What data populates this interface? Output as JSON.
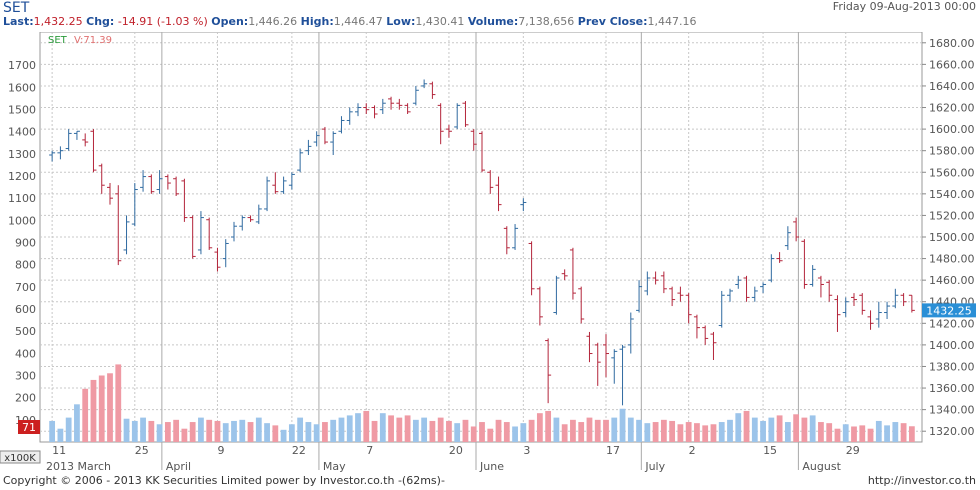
{
  "header": {
    "symbol": "SET",
    "date": "Friday 09-Aug-2013 00:00",
    "last_label": "Last:",
    "last_value": "1,432.25",
    "chg_label": "Chg:",
    "chg_value": "-14.91 (-1.03 %)",
    "open_label": "Open:",
    "open_value": "1,446.26",
    "high_label": "High:",
    "high_value": "1,446.47",
    "low_label": "Low:",
    "low_value": "1,430.41",
    "volume_label": "Volume:",
    "volume_value": "7,138,656",
    "prevclose_label": "Prev Close:",
    "prevclose_value": "1,447.16"
  },
  "footer": {
    "copyright": "Copyright © 2006 - 2013 KK Securities Limited power by Investor.co.th  -(62ms)-",
    "url": "http://investor.co.th"
  },
  "chart_data": {
    "type": "ohlc",
    "legend": {
      "symbol": "SET",
      "volume": "V:71.39"
    },
    "price_axis": {
      "min": 1310,
      "max": 1690,
      "ticks": [
        1320,
        1340,
        1360,
        1380,
        1400,
        1420,
        1440,
        1460,
        1480,
        1500,
        1520,
        1540,
        1560,
        1580,
        1600,
        1620,
        1640,
        1660,
        1680
      ]
    },
    "left_axis": {
      "ticks": [
        100,
        200,
        300,
        400,
        500,
        600,
        700,
        800,
        900,
        1000,
        1100,
        1200,
        1300,
        1400,
        1500,
        1600,
        1700
      ]
    },
    "volume_unit": "x100K",
    "current_price": "1432.25",
    "current_volume": "71",
    "x_labels": [
      "11",
      "25",
      "9",
      "22",
      "7",
      "20",
      "3",
      "17",
      "2",
      "15",
      "29"
    ],
    "month_labels": [
      "2013 March",
      "April",
      "May",
      "June",
      "July",
      "August"
    ],
    "bars": [
      {
        "o": 1576,
        "h": 1580,
        "l": 1570,
        "c": 1578,
        "v": 95
      },
      {
        "o": 1578,
        "h": 1584,
        "l": 1572,
        "c": 1580,
        "v": 60
      },
      {
        "o": 1582,
        "h": 1600,
        "l": 1580,
        "c": 1596,
        "v": 110
      },
      {
        "o": 1596,
        "h": 1598,
        "l": 1590,
        "c": 1598,
        "v": 170
      },
      {
        "o": 1590,
        "h": 1596,
        "l": 1584,
        "c": 1588,
        "v": 240
      },
      {
        "o": 1598,
        "h": 1600,
        "l": 1560,
        "c": 1562,
        "v": 280
      },
      {
        "o": 1566,
        "h": 1568,
        "l": 1540,
        "c": 1548,
        "v": 300
      },
      {
        "o": 1546,
        "h": 1550,
        "l": 1530,
        "c": 1536,
        "v": 310
      },
      {
        "o": 1540,
        "h": 1548,
        "l": 1474,
        "c": 1478,
        "v": 350
      },
      {
        "o": 1488,
        "h": 1520,
        "l": 1484,
        "c": 1514,
        "v": 105
      },
      {
        "o": 1512,
        "h": 1550,
        "l": 1510,
        "c": 1544,
        "v": 95
      },
      {
        "o": 1546,
        "h": 1562,
        "l": 1542,
        "c": 1556,
        "v": 110
      },
      {
        "o": 1556,
        "h": 1558,
        "l": 1540,
        "c": 1542,
        "v": 95
      },
      {
        "o": 1544,
        "h": 1562,
        "l": 1540,
        "c": 1554,
        "v": 80
      },
      {
        "o": 1556,
        "h": 1558,
        "l": 1544,
        "c": 1550,
        "v": 90
      },
      {
        "o": 1554,
        "h": 1556,
        "l": 1538,
        "c": 1540,
        "v": 100
      },
      {
        "o": 1552,
        "h": 1554,
        "l": 1514,
        "c": 1518,
        "v": 60
      },
      {
        "o": 1518,
        "h": 1520,
        "l": 1480,
        "c": 1482,
        "v": 90
      },
      {
        "o": 1488,
        "h": 1524,
        "l": 1484,
        "c": 1518,
        "v": 110
      },
      {
        "o": 1516,
        "h": 1518,
        "l": 1488,
        "c": 1490,
        "v": 100
      },
      {
        "o": 1486,
        "h": 1490,
        "l": 1468,
        "c": 1472,
        "v": 95
      },
      {
        "o": 1480,
        "h": 1498,
        "l": 1472,
        "c": 1494,
        "v": 85
      },
      {
        "o": 1500,
        "h": 1514,
        "l": 1496,
        "c": 1510,
        "v": 95
      },
      {
        "o": 1510,
        "h": 1520,
        "l": 1506,
        "c": 1518,
        "v": 100
      },
      {
        "o": 1518,
        "h": 1520,
        "l": 1514,
        "c": 1516,
        "v": 90
      },
      {
        "o": 1514,
        "h": 1530,
        "l": 1512,
        "c": 1526,
        "v": 110
      },
      {
        "o": 1526,
        "h": 1556,
        "l": 1524,
        "c": 1552,
        "v": 85
      },
      {
        "o": 1548,
        "h": 1560,
        "l": 1540,
        "c": 1542,
        "v": 75
      },
      {
        "o": 1542,
        "h": 1556,
        "l": 1540,
        "c": 1552,
        "v": 55
      },
      {
        "o": 1548,
        "h": 1560,
        "l": 1544,
        "c": 1558,
        "v": 80
      },
      {
        "o": 1562,
        "h": 1582,
        "l": 1560,
        "c": 1578,
        "v": 110
      },
      {
        "o": 1580,
        "h": 1590,
        "l": 1576,
        "c": 1584,
        "v": 90
      },
      {
        "o": 1588,
        "h": 1598,
        "l": 1584,
        "c": 1594,
        "v": 80
      },
      {
        "o": 1600,
        "h": 1602,
        "l": 1586,
        "c": 1588,
        "v": 90
      },
      {
        "o": 1588,
        "h": 1598,
        "l": 1576,
        "c": 1596,
        "v": 100
      },
      {
        "o": 1598,
        "h": 1612,
        "l": 1596,
        "c": 1608,
        "v": 110
      },
      {
        "o": 1608,
        "h": 1620,
        "l": 1604,
        "c": 1616,
        "v": 120
      },
      {
        "o": 1616,
        "h": 1624,
        "l": 1612,
        "c": 1620,
        "v": 130
      },
      {
        "o": 1620,
        "h": 1624,
        "l": 1614,
        "c": 1618,
        "v": 140
      },
      {
        "o": 1620,
        "h": 1622,
        "l": 1610,
        "c": 1614,
        "v": 95
      },
      {
        "o": 1618,
        "h": 1628,
        "l": 1614,
        "c": 1624,
        "v": 130
      },
      {
        "o": 1628,
        "h": 1630,
        "l": 1618,
        "c": 1624,
        "v": 120
      },
      {
        "o": 1624,
        "h": 1628,
        "l": 1618,
        "c": 1622,
        "v": 110
      },
      {
        "o": 1622,
        "h": 1624,
        "l": 1614,
        "c": 1616,
        "v": 120
      },
      {
        "o": 1624,
        "h": 1640,
        "l": 1622,
        "c": 1636,
        "v": 100
      },
      {
        "o": 1640,
        "h": 1646,
        "l": 1638,
        "c": 1642,
        "v": 110
      },
      {
        "o": 1642,
        "h": 1644,
        "l": 1628,
        "c": 1632,
        "v": 95
      },
      {
        "o": 1622,
        "h": 1624,
        "l": 1586,
        "c": 1598,
        "v": 110
      },
      {
        "o": 1600,
        "h": 1604,
        "l": 1592,
        "c": 1598,
        "v": 95
      },
      {
        "o": 1602,
        "h": 1624,
        "l": 1600,
        "c": 1622,
        "v": 85
      },
      {
        "o": 1624,
        "h": 1626,
        "l": 1602,
        "c": 1604,
        "v": 100
      },
      {
        "o": 1598,
        "h": 1600,
        "l": 1580,
        "c": 1586,
        "v": 70
      },
      {
        "o": 1596,
        "h": 1598,
        "l": 1560,
        "c": 1562,
        "v": 90
      },
      {
        "o": 1560,
        "h": 1562,
        "l": 1540,
        "c": 1546,
        "v": 60
      },
      {
        "o": 1548,
        "h": 1556,
        "l": 1524,
        "c": 1530,
        "v": 100
      },
      {
        "o": 1508,
        "h": 1510,
        "l": 1484,
        "c": 1490,
        "v": 90
      },
      {
        "o": 1490,
        "h": 1512,
        "l": 1488,
        "c": 1508,
        "v": 70
      },
      {
        "o": 1530,
        "h": 1536,
        "l": 1524,
        "c": 1532,
        "v": 85
      },
      {
        "o": 1494,
        "h": 1496,
        "l": 1446,
        "c": 1452,
        "v": 100
      },
      {
        "o": 1452,
        "h": 1454,
        "l": 1418,
        "c": 1426,
        "v": 130
      },
      {
        "o": 1404,
        "h": 1406,
        "l": 1346,
        "c": 1372,
        "v": 140
      },
      {
        "o": 1430,
        "h": 1464,
        "l": 1428,
        "c": 1462,
        "v": 110
      },
      {
        "o": 1466,
        "h": 1470,
        "l": 1460,
        "c": 1464,
        "v": 80
      },
      {
        "o": 1488,
        "h": 1490,
        "l": 1442,
        "c": 1448,
        "v": 100
      },
      {
        "o": 1452,
        "h": 1454,
        "l": 1420,
        "c": 1424,
        "v": 90
      },
      {
        "o": 1408,
        "h": 1412,
        "l": 1384,
        "c": 1392,
        "v": 110
      },
      {
        "o": 1400,
        "h": 1402,
        "l": 1362,
        "c": 1384,
        "v": 100
      },
      {
        "o": 1400,
        "h": 1410,
        "l": 1370,
        "c": 1392,
        "v": 100
      },
      {
        "o": 1388,
        "h": 1396,
        "l": 1364,
        "c": 1394,
        "v": 110
      },
      {
        "o": 1396,
        "h": 1400,
        "l": 1344,
        "c": 1398,
        "v": 150
      },
      {
        "o": 1400,
        "h": 1430,
        "l": 1392,
        "c": 1424,
        "v": 110
      },
      {
        "o": 1432,
        "h": 1460,
        "l": 1430,
        "c": 1454,
        "v": 100
      },
      {
        "o": 1450,
        "h": 1468,
        "l": 1446,
        "c": 1462,
        "v": 85
      },
      {
        "o": 1462,
        "h": 1468,
        "l": 1456,
        "c": 1460,
        "v": 90
      },
      {
        "o": 1464,
        "h": 1468,
        "l": 1448,
        "c": 1452,
        "v": 100
      },
      {
        "o": 1452,
        "h": 1454,
        "l": 1436,
        "c": 1442,
        "v": 95
      },
      {
        "o": 1448,
        "h": 1454,
        "l": 1440,
        "c": 1446,
        "v": 80
      },
      {
        "o": 1446,
        "h": 1448,
        "l": 1420,
        "c": 1428,
        "v": 90
      },
      {
        "o": 1426,
        "h": 1428,
        "l": 1406,
        "c": 1416,
        "v": 85
      },
      {
        "o": 1416,
        "h": 1418,
        "l": 1400,
        "c": 1406,
        "v": 75
      },
      {
        "o": 1410,
        "h": 1412,
        "l": 1386,
        "c": 1402,
        "v": 80
      },
      {
        "o": 1418,
        "h": 1450,
        "l": 1416,
        "c": 1446,
        "v": 90
      },
      {
        "o": 1446,
        "h": 1452,
        "l": 1440,
        "c": 1450,
        "v": 100
      },
      {
        "o": 1456,
        "h": 1464,
        "l": 1452,
        "c": 1460,
        "v": 130
      },
      {
        "o": 1462,
        "h": 1464,
        "l": 1440,
        "c": 1444,
        "v": 140
      },
      {
        "o": 1444,
        "h": 1454,
        "l": 1440,
        "c": 1450,
        "v": 110
      },
      {
        "o": 1454,
        "h": 1458,
        "l": 1448,
        "c": 1456,
        "v": 95
      },
      {
        "o": 1460,
        "h": 1484,
        "l": 1458,
        "c": 1480,
        "v": 110
      },
      {
        "o": 1480,
        "h": 1486,
        "l": 1476,
        "c": 1478,
        "v": 120
      },
      {
        "o": 1492,
        "h": 1510,
        "l": 1488,
        "c": 1504,
        "v": 90
      },
      {
        "o": 1514,
        "h": 1518,
        "l": 1496,
        "c": 1500,
        "v": 125
      },
      {
        "o": 1496,
        "h": 1498,
        "l": 1452,
        "c": 1456,
        "v": 110
      },
      {
        "o": 1456,
        "h": 1474,
        "l": 1454,
        "c": 1470,
        "v": 120
      },
      {
        "o": 1462,
        "h": 1464,
        "l": 1444,
        "c": 1456,
        "v": 90
      },
      {
        "o": 1458,
        "h": 1460,
        "l": 1440,
        "c": 1446,
        "v": 85
      },
      {
        "o": 1442,
        "h": 1446,
        "l": 1412,
        "c": 1428,
        "v": 60
      },
      {
        "o": 1430,
        "h": 1444,
        "l": 1426,
        "c": 1440,
        "v": 80
      },
      {
        "o": 1444,
        "h": 1448,
        "l": 1436,
        "c": 1442,
        "v": 70
      },
      {
        "o": 1446,
        "h": 1448,
        "l": 1428,
        "c": 1432,
        "v": 75
      },
      {
        "o": 1426,
        "h": 1432,
        "l": 1414,
        "c": 1420,
        "v": 60
      },
      {
        "o": 1424,
        "h": 1440,
        "l": 1416,
        "c": 1430,
        "v": 95
      },
      {
        "o": 1430,
        "h": 1440,
        "l": 1424,
        "c": 1436,
        "v": 75
      },
      {
        "o": 1436,
        "h": 1452,
        "l": 1434,
        "c": 1446,
        "v": 90
      },
      {
        "o": 1446,
        "h": 1448,
        "l": 1436,
        "c": 1440,
        "v": 85
      },
      {
        "o": 1446,
        "h": 1446,
        "l": 1430,
        "c": 1432,
        "v": 71
      }
    ]
  },
  "colors": {
    "up": "#2f6aa0",
    "down": "#b3243a",
    "vol_up": "#9cc4ea",
    "vol_down": "#ef9aa4",
    "grid": "#c8c8c8",
    "price_tag": "#2a8fd6",
    "volume_tag": "#cc1f1f"
  }
}
